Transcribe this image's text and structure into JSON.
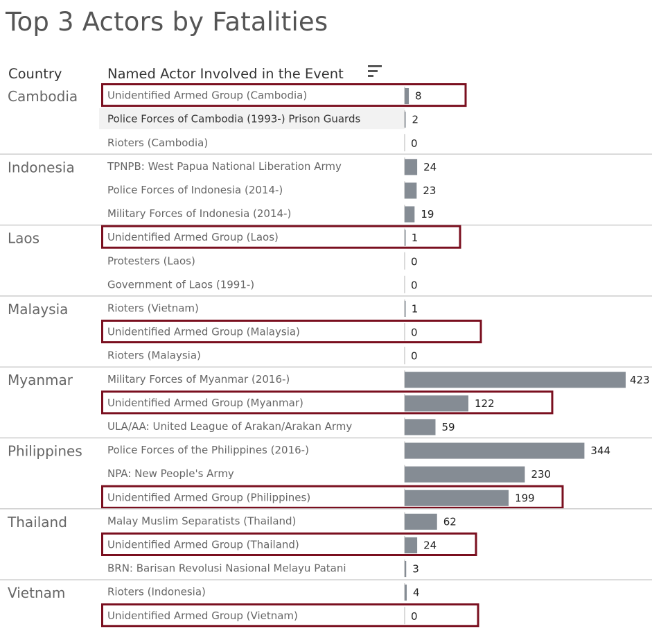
{
  "title": "Top 3 Actors by Fatalities",
  "headers": {
    "country": "Country",
    "actor": "Named Actor Involved in the Event",
    "sort_icon": "sort-descending-icon"
  },
  "colors": {
    "bar": "#858c94",
    "highlight_box": "#7a0f1f",
    "hover_row": "#f2f2f2",
    "separator": "#cccccc"
  },
  "chart_data": {
    "type": "bar",
    "orientation": "horizontal",
    "title": "Top 3 Actors by Fatalities",
    "xlim": [
      0,
      423
    ],
    "grid": false,
    "groups": [
      {
        "country": "Cambodia",
        "rows": [
          {
            "actor": "Unidentified Armed Group (Cambodia)",
            "value": 8,
            "highlighted": true
          },
          {
            "actor": "Police Forces of Cambodia (1993-) Prison Guards",
            "value": 2,
            "highlighted": false,
            "hovered": true
          },
          {
            "actor": "Rioters (Cambodia)",
            "value": 0,
            "highlighted": false
          }
        ]
      },
      {
        "country": "Indonesia",
        "rows": [
          {
            "actor": "TPNPB: West Papua National Liberation Army",
            "value": 24,
            "highlighted": false
          },
          {
            "actor": "Police Forces of Indonesia (2014-)",
            "value": 23,
            "highlighted": false
          },
          {
            "actor": "Military Forces of Indonesia (2014-)",
            "value": 19,
            "highlighted": false
          }
        ]
      },
      {
        "country": "Laos",
        "rows": [
          {
            "actor": "Unidentified Armed Group (Laos)",
            "value": 1,
            "highlighted": true
          },
          {
            "actor": "Protesters (Laos)",
            "value": 0,
            "highlighted": false
          },
          {
            "actor": "Government of Laos (1991-)",
            "value": 0,
            "highlighted": false
          }
        ]
      },
      {
        "country": "Malaysia",
        "rows": [
          {
            "actor": "Rioters (Vietnam)",
            "value": 1,
            "highlighted": false
          },
          {
            "actor": "Unidentified Armed Group (Malaysia)",
            "value": 0,
            "highlighted": true
          },
          {
            "actor": "Rioters (Malaysia)",
            "value": 0,
            "highlighted": false
          }
        ]
      },
      {
        "country": "Myanmar",
        "rows": [
          {
            "actor": "Military Forces of Myanmar (2016-)",
            "value": 423,
            "highlighted": false
          },
          {
            "actor": "Unidentified Armed Group (Myanmar)",
            "value": 122,
            "highlighted": true
          },
          {
            "actor": "ULA/AA: United League of Arakan/Arakan Army",
            "value": 59,
            "highlighted": false
          }
        ]
      },
      {
        "country": "Philippines",
        "rows": [
          {
            "actor": "Police Forces of the Philippines (2016-)",
            "value": 344,
            "highlighted": false
          },
          {
            "actor": "NPA: New People's Army",
            "value": 230,
            "highlighted": false
          },
          {
            "actor": "Unidentified Armed Group (Philippines)",
            "value": 199,
            "highlighted": true
          }
        ]
      },
      {
        "country": "Thailand",
        "rows": [
          {
            "actor": "Malay Muslim Separatists (Thailand)",
            "value": 62,
            "highlighted": false
          },
          {
            "actor": "Unidentified Armed Group (Thailand)",
            "value": 24,
            "highlighted": true
          },
          {
            "actor": "BRN: Barisan Revolusi Nasional Melayu Patani",
            "value": 3,
            "highlighted": false
          }
        ]
      },
      {
        "country": "Vietnam",
        "rows": [
          {
            "actor": "Rioters (Indonesia)",
            "value": 4,
            "highlighted": false
          },
          {
            "actor": "Unidentified Armed Group (Vietnam)",
            "value": 0,
            "highlighted": true
          }
        ]
      }
    ]
  }
}
